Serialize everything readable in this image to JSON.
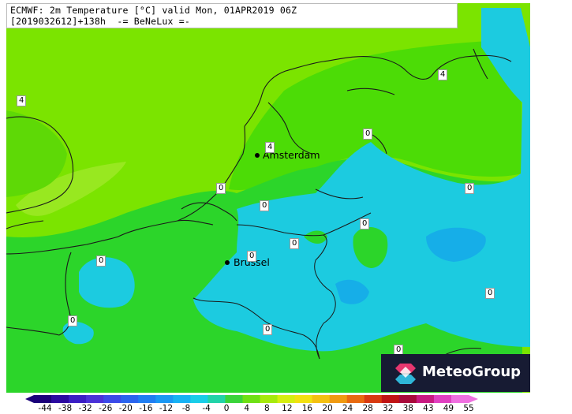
{
  "header": {
    "line1": "ECMWF: 2m Temperature [°C] valid Mon, 01APR2019 06Z",
    "line2": "[2019032612]+138h  -= BeNeLux =-"
  },
  "cities": [
    {
      "name": "Amsterdam"
    },
    {
      "name": "Brussel"
    }
  ],
  "isolines": [
    "4",
    "4",
    "4",
    "0",
    "0",
    "0",
    "0",
    "0",
    "0",
    "0",
    "0",
    "0",
    "0",
    "0",
    "0",
    "0"
  ],
  "logo": {
    "text": "MeteoGroup"
  },
  "scale": {
    "labels": [
      "-44",
      "-38",
      "-32",
      "-26",
      "-20",
      "-16",
      "-12",
      "-8",
      "-4",
      "0",
      "4",
      "8",
      "12",
      "16",
      "20",
      "24",
      "28",
      "32",
      "38",
      "43",
      "49",
      "55"
    ],
    "colors": [
      "#1a007a",
      "#2a0aa0",
      "#3a1ec4",
      "#4a32d8",
      "#3b4ae8",
      "#2a64ee",
      "#1f7ef2",
      "#1a98f4",
      "#17b2f4",
      "#19cde8",
      "#21d3a8",
      "#3ad43a",
      "#6ee014",
      "#a6ea0c",
      "#d6ee10",
      "#f2e010",
      "#f4c010",
      "#f09a10",
      "#e86a10",
      "#d83a10",
      "#c01414",
      "#a80a3a",
      "#c81a80",
      "#e040c0",
      "#f070e0"
    ]
  },
  "colors": {
    "light_green": "#7be400",
    "mid_green": "#4cdc06",
    "green": "#2cd52a",
    "cyan": "#1ccbe0",
    "blue": "#16aee8"
  }
}
